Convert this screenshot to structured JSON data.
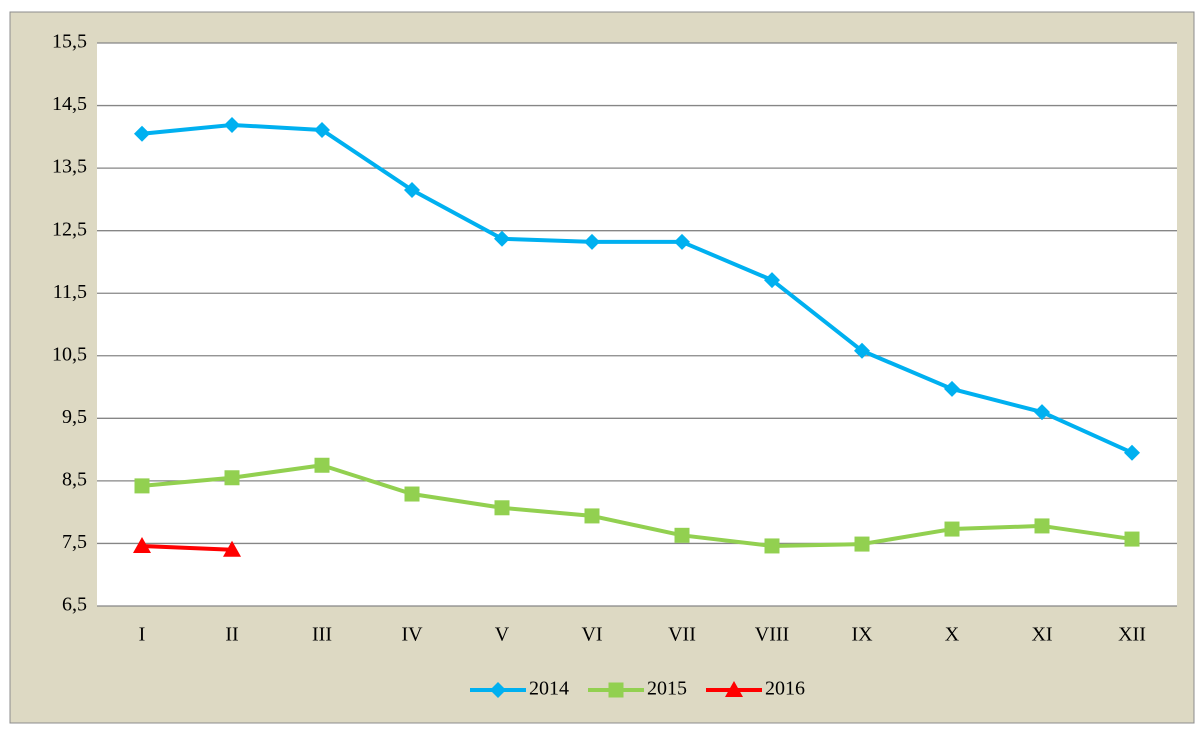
{
  "chart_data": {
    "type": "line",
    "categories": [
      "I",
      "II",
      "III",
      "IV",
      "V",
      "VI",
      "VII",
      "VIII",
      "IX",
      "X",
      "XI",
      "XII"
    ],
    "series": [
      {
        "name": "2014",
        "color": "#00b0f0",
        "marker": "diamond",
        "values": [
          14.05,
          14.19,
          14.11,
          13.15,
          12.37,
          12.32,
          12.32,
          11.71,
          10.58,
          9.97,
          9.6,
          8.95
        ]
      },
      {
        "name": "2015",
        "color": "#92d050",
        "marker": "square",
        "values": [
          8.42,
          8.55,
          8.75,
          8.29,
          8.07,
          7.94,
          7.63,
          7.46,
          7.49,
          7.73,
          7.78,
          7.57
        ]
      },
      {
        "name": "2016",
        "color": "#ff0000",
        "marker": "triangle",
        "values": [
          7.46,
          7.4,
          null,
          null,
          null,
          null,
          null,
          null,
          null,
          null,
          null,
          null
        ]
      }
    ],
    "ylim": [
      6.5,
      15.5
    ],
    "yticks": [
      {
        "value": 6.5,
        "label": "6,5"
      },
      {
        "value": 7.5,
        "label": "7,5"
      },
      {
        "value": 8.5,
        "label": "8,5"
      },
      {
        "value": 9.5,
        "label": "9,5"
      },
      {
        "value": 10.5,
        "label": "10,5"
      },
      {
        "value": 11.5,
        "label": "11,5"
      },
      {
        "value": 12.5,
        "label": "12,5"
      },
      {
        "value": 13.5,
        "label": "13,5"
      },
      {
        "value": 14.5,
        "label": "14,5"
      },
      {
        "value": 15.5,
        "label": "15,5"
      }
    ],
    "grid": true,
    "legend": "bottom"
  }
}
